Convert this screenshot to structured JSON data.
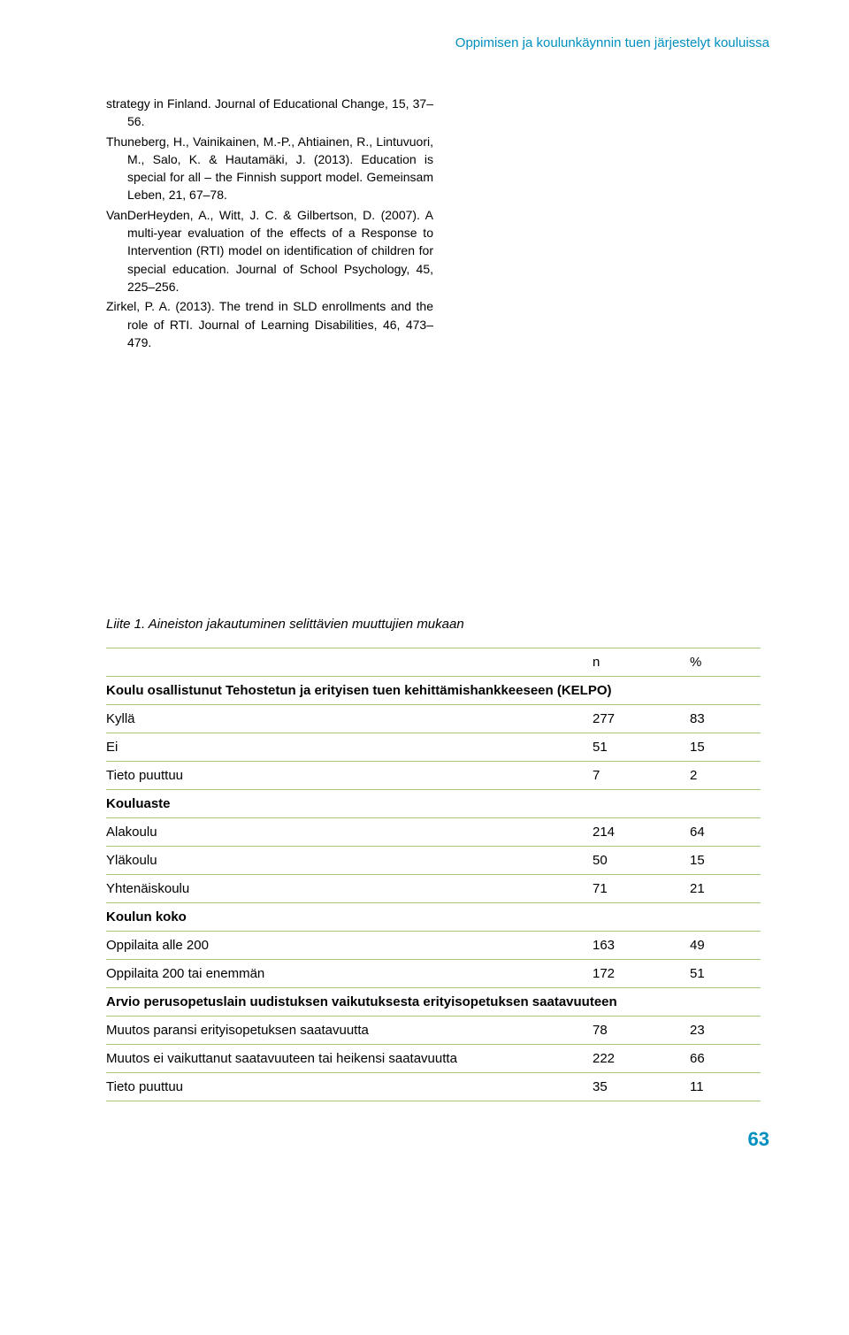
{
  "header": "Oppimisen ja koulunkäynnin tuen järjestelyt kouluissa",
  "refs": [
    "strategy in Finland. Journal of Educational Change, 15, 37–56.",
    "Thuneberg, H., Vainikainen, M.-P., Ahtiainen, R., Lintuvuori, M., Salo, K. & Hautamäki, J. (2013). Education is special for all – the Finnish support model. Gemeinsam Leben, 21, 67–78.",
    "VanDerHeyden, A., Witt, J. C. & Gilbertson, D. (2007). A multi-year evaluation of the effects of a Response to Intervention (RTI) model on identification of children for special education. Journal of School Psychology, 45, 225–256.",
    "Zirkel, P. A. (2013). The trend in SLD enrollments and the role of RTI. Journal of Learning Disabilities, 46, 473–479."
  ],
  "table": {
    "caption": "Liite 1. Aineiston jakautuminen selittävien muuttujien mukaan",
    "col_n": "n",
    "col_pct": "%",
    "border_color": "#a7c97a",
    "rows": [
      {
        "type": "section",
        "label": "Koulu osallistunut Tehostetun ja erityisen tuen kehittämishankkeeseen (KELPO)"
      },
      {
        "type": "data",
        "label": "Kyllä",
        "n": "277",
        "pct": "83"
      },
      {
        "type": "data",
        "label": "Ei",
        "n": "51",
        "pct": "15"
      },
      {
        "type": "data",
        "label": "Tieto puuttuu",
        "n": "7",
        "pct": "2"
      },
      {
        "type": "section",
        "label": "Kouluaste"
      },
      {
        "type": "data",
        "label": "Alakoulu",
        "n": "214",
        "pct": "64"
      },
      {
        "type": "data",
        "label": "Yläkoulu",
        "n": "50",
        "pct": "15"
      },
      {
        "type": "data",
        "label": "Yhtenäiskoulu",
        "n": "71",
        "pct": "21"
      },
      {
        "type": "section",
        "label": "Koulun koko"
      },
      {
        "type": "data",
        "label": "Oppilaita alle 200",
        "n": "163",
        "pct": "49"
      },
      {
        "type": "data",
        "label": "Oppilaita 200 tai enemmän",
        "n": "172",
        "pct": "51"
      },
      {
        "type": "section",
        "label": "Arvio perusopetuslain uudistuksen vaikutuksesta erityisopetuksen saatavuuteen"
      },
      {
        "type": "data",
        "label": "Muutos paransi erityisopetuksen saatavuutta",
        "n": "78",
        "pct": "23"
      },
      {
        "type": "data",
        "label": "Muutos ei vaikuttanut saatavuuteen tai heikensi saatavuutta",
        "n": "222",
        "pct": "66"
      },
      {
        "type": "data",
        "label": "Tieto puuttuu",
        "n": "35",
        "pct": "11"
      }
    ]
  },
  "page_number": "63"
}
